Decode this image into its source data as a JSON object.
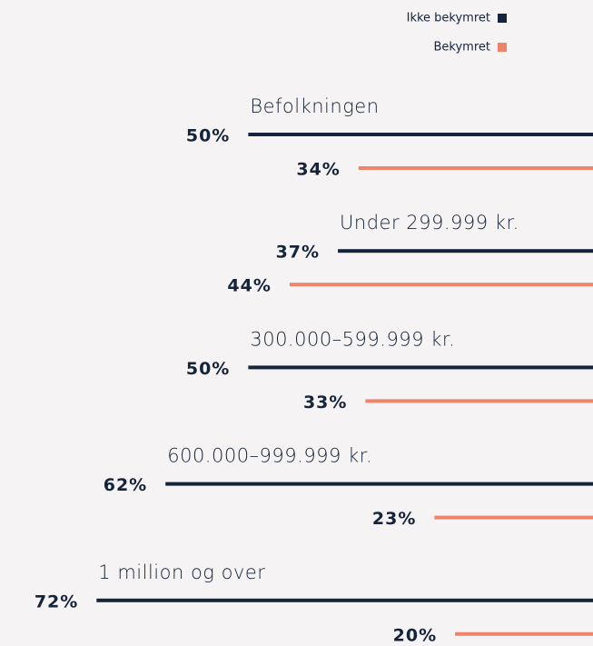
{
  "chart_data": {
    "type": "bar",
    "orientation": "horizontal",
    "categories": [
      "Befolkningen",
      "Under 299.999 kr.",
      "300.000–599.999 kr.",
      "600.000–999.999 kr.",
      "1 million og over"
    ],
    "series": [
      {
        "name": "Ikke bekymret",
        "color": "#15233b",
        "values": [
          50,
          37,
          50,
          62,
          72
        ],
        "value_labels": [
          "50%",
          "37%",
          "50%",
          "62%",
          "72%"
        ]
      },
      {
        "name": "Bekymret",
        "color": "#f0846a",
        "values": [
          34,
          44,
          33,
          23,
          20
        ],
        "value_labels": [
          "34%",
          "44%",
          "33%",
          "23%",
          "20%"
        ]
      }
    ],
    "xlim": [
      0,
      86
    ],
    "legend": "top-right"
  }
}
